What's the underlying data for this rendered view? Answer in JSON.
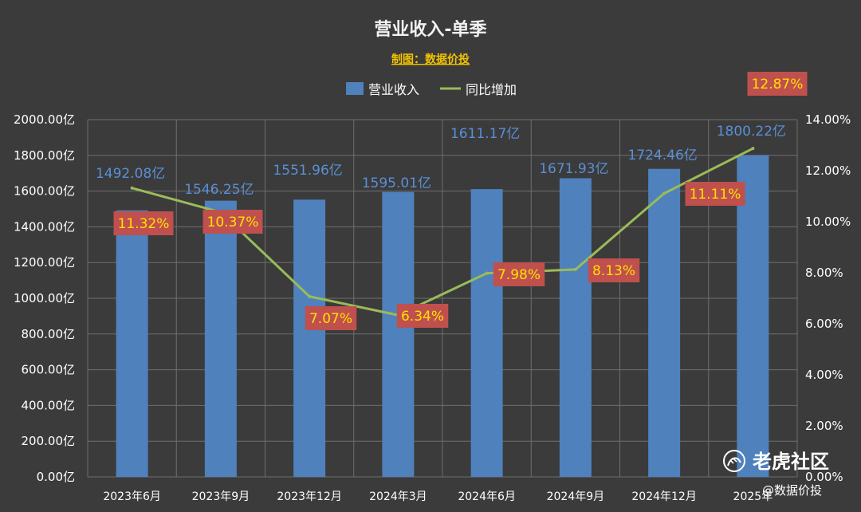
{
  "chart_data": {
    "type": "bar",
    "title": "营业收入-单季",
    "subtitle": "制图：数据价投",
    "categories": [
      "2023年6月",
      "2023年9月",
      "2023年12月",
      "2024年3月",
      "2024年6月",
      "2024年9月",
      "2024年12月",
      "2025年3月"
    ],
    "x_tick_labels": [
      "2023年6月",
      "2023年9月",
      "2023年12月",
      "2024年3月",
      "2024年6月",
      "2024年9月",
      "2024年12月",
      "2025年"
    ],
    "series": [
      {
        "name": "营业收入",
        "type": "bar",
        "axis": "left",
        "color": "#4f81bd",
        "values": [
          1492.08,
          1546.25,
          1551.96,
          1595.01,
          1611.17,
          1671.93,
          1724.46,
          1800.22
        ],
        "labels": [
          "1492.08亿",
          "1546.25亿",
          "1551.96亿",
          "1595.01亿",
          "1611.17亿",
          "1671.93亿",
          "1724.46亿",
          "1800.22亿"
        ]
      },
      {
        "name": "同比增加",
        "type": "line",
        "axis": "right",
        "color": "#9bbb59",
        "values": [
          11.32,
          10.37,
          7.07,
          6.34,
          7.98,
          8.13,
          11.11,
          12.87
        ],
        "labels": [
          "11.32%",
          "10.37%",
          "7.07%",
          "6.34%",
          "7.98%",
          "8.13%",
          "11.11%",
          "12.87%"
        ]
      }
    ],
    "y_left": {
      "range": [
        0,
        2000
      ],
      "ticks": [
        0,
        200,
        400,
        600,
        800,
        1000,
        1200,
        1400,
        1600,
        1800,
        2000
      ],
      "tick_labels": [
        "0.00亿",
        "200.00亿",
        "400.00亿",
        "600.00亿",
        "800.00亿",
        "1000.00亿",
        "1200.00亿",
        "1400.00亿",
        "1600.00亿",
        "1800.00亿",
        "2000.00亿"
      ]
    },
    "y_right": {
      "range": [
        0,
        14
      ],
      "ticks": [
        0,
        2,
        4,
        6,
        8,
        10,
        12,
        14
      ],
      "tick_labels": [
        "0.00%",
        "2.00%",
        "4.00%",
        "6.00%",
        "8.00%",
        "10.00%",
        "12.00%",
        "14.00%"
      ]
    },
    "grid": true,
    "legend_position": "top"
  },
  "watermark": {
    "brand": "老虎社区",
    "handle": "@数据价投",
    "icon": "tiger-community-logo-icon"
  },
  "colors": {
    "background": "#3b3b3b",
    "label_box": "#c0504d"
  }
}
